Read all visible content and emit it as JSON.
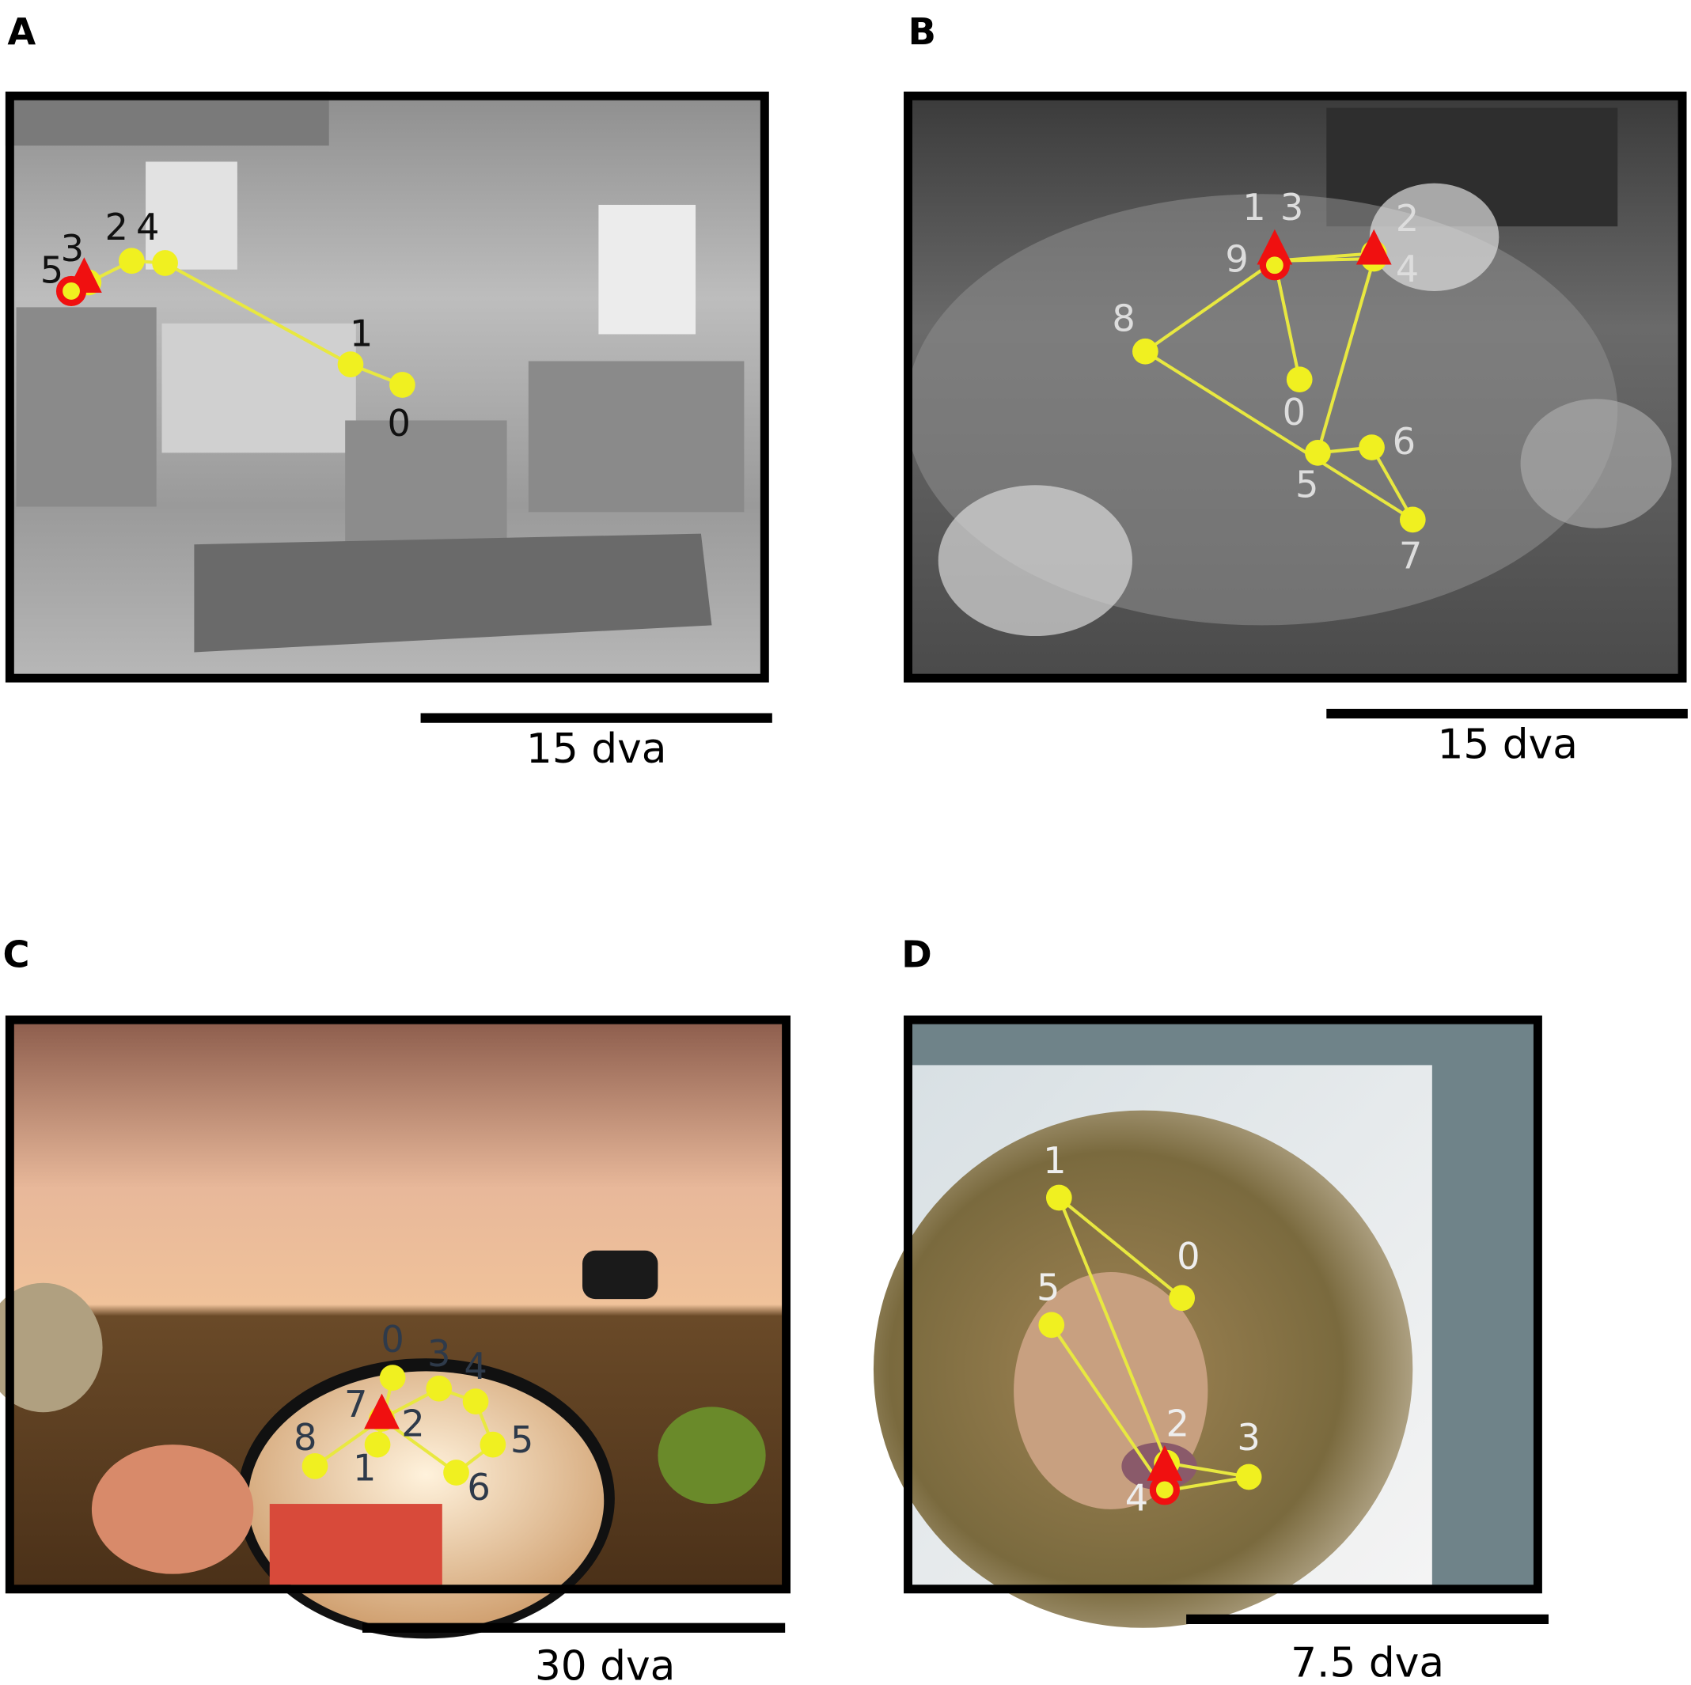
{
  "panels": [
    {
      "label": "A",
      "fixations": [
        0,
        1,
        2,
        3,
        4,
        5
      ],
      "scale_label": "15 dva"
    },
    {
      "label": "B",
      "fixations": [
        0,
        1,
        2,
        3,
        4,
        5,
        6,
        7,
        8,
        9
      ],
      "scale_label": "15 dva"
    },
    {
      "label": "C",
      "fixations": [
        0,
        1,
        2,
        3,
        4,
        5,
        6,
        7,
        8
      ],
      "scale_label": "30 dva"
    },
    {
      "label": "D",
      "fixations": [
        0,
        1,
        2,
        3,
        4,
        5
      ],
      "scale_label": "7.5 dva"
    }
  ]
}
